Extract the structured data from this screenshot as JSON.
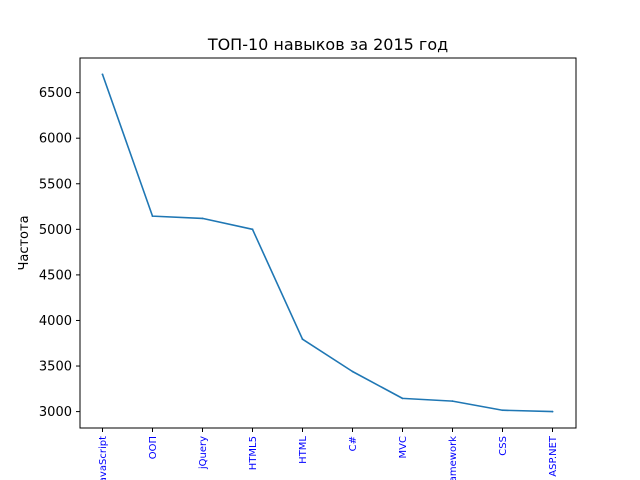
{
  "chart_data": {
    "type": "line",
    "title": "ТОП-10 навыков за 2015 год",
    "xlabel": "",
    "ylabel": "Частота",
    "categories": [
      "JavaScript",
      "ООП",
      "jQuery",
      "HTML5",
      "HTML",
      "C#",
      "MVC",
      "Framework",
      "CSS",
      "ASP.NET"
    ],
    "series": [
      {
        "values": [
          6700,
          5145,
          5120,
          5000,
          3795,
          3440,
          3145,
          3115,
          3015,
          3000
        ]
      }
    ],
    "ylim": [
      2820,
      6880
    ],
    "yticks": [
      3000,
      3500,
      4000,
      4500,
      5000,
      5500,
      6000,
      6500
    ],
    "grid": false,
    "colors": {
      "line": "#1f77b4",
      "xtick_label": "#0000ff",
      "axes": "#000000"
    }
  }
}
